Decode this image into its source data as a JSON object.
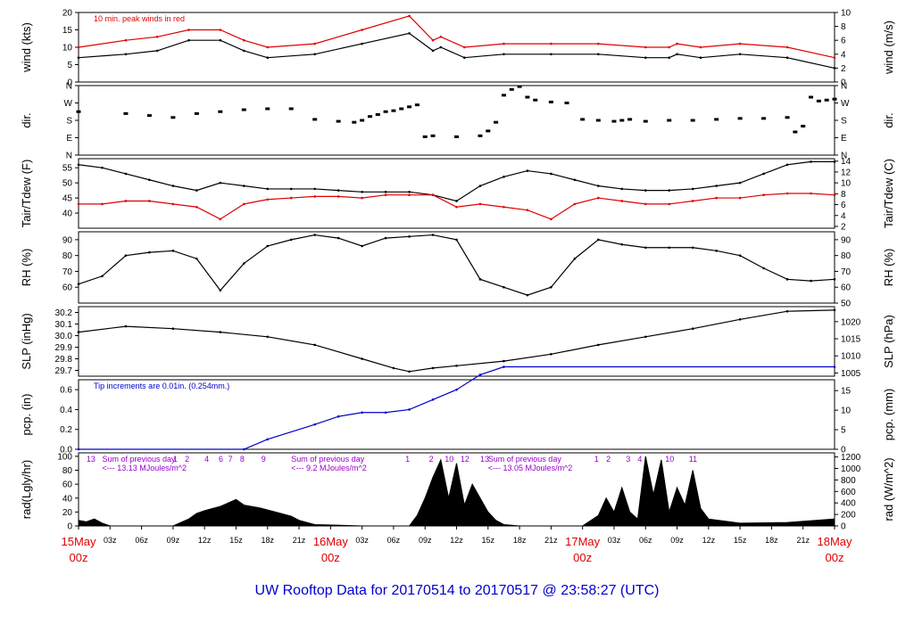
{
  "title": "UW Rooftop Data for 20170514  to  20170517 @ 23:58:27  (UTC)",
  "colors": {
    "primary": "#000000",
    "peak": "#e00000",
    "dewpoint": "#e00000",
    "precip": "#0000cc",
    "annotation": "#9900cc",
    "title": "#0000cc",
    "date": "#e00000"
  },
  "chart_data": [
    {
      "type": "line",
      "id": "wind",
      "ylabel_left": "wind (kts)",
      "ylabel_right": "wind (m/s)",
      "ylim": [
        0,
        20
      ],
      "ticks_left": [
        "0",
        "5",
        "10",
        "15",
        "20"
      ],
      "ylim_right": [
        0,
        10
      ],
      "ticks_right": [
        "0",
        "2",
        "4",
        "6",
        "8",
        "10"
      ],
      "annotation": "10 min. peak winds in red",
      "series": [
        {
          "name": "wind",
          "color": "#000000",
          "x": [
            0,
            6,
            10,
            14,
            18,
            21,
            24,
            30,
            36,
            42,
            45,
            46,
            49,
            54,
            60,
            66,
            72,
            75,
            76,
            79,
            84,
            90,
            96
          ],
          "values": [
            7,
            8,
            9,
            12,
            12,
            9,
            7,
            8,
            11,
            14,
            9,
            10,
            7,
            8,
            8,
            8,
            7,
            7,
            8,
            7,
            8,
            7,
            4
          ]
        },
        {
          "name": "10 min. peak",
          "color": "#e00000",
          "x": [
            0,
            6,
            10,
            14,
            18,
            21,
            24,
            30,
            36,
            42,
            45,
            46,
            49,
            54,
            60,
            66,
            72,
            75,
            76,
            79,
            84,
            90,
            96
          ],
          "values": [
            10,
            12,
            13,
            15,
            15,
            12,
            10,
            11,
            15,
            19,
            12,
            13,
            10,
            11,
            11,
            11,
            10,
            10,
            11,
            10,
            11,
            10,
            7
          ]
        }
      ]
    },
    {
      "type": "scatter",
      "id": "dir",
      "ylabel_left": "dir.",
      "ylabel_right": "dir.",
      "ylim": [
        0,
        360
      ],
      "ticks_left": [
        "N",
        "E",
        "S",
        "W",
        "N"
      ],
      "ticks_right": [
        "N",
        "E",
        "S",
        "W",
        "N"
      ],
      "series": [
        {
          "name": "dir",
          "color": "#000000",
          "x": [
            0,
            6,
            9,
            12,
            15,
            18,
            21,
            24,
            27,
            30,
            33,
            35,
            36,
            37,
            38,
            39,
            40,
            41,
            42,
            43,
            44,
            45,
            48,
            51,
            52,
            53,
            54,
            55,
            56,
            57,
            58,
            60,
            62,
            64,
            66,
            68,
            69,
            70,
            72,
            75,
            78,
            81,
            84,
            87,
            90,
            91,
            92,
            93,
            94,
            95,
            96
          ],
          "values": [
            225,
            215,
            205,
            195,
            215,
            225,
            235,
            240,
            240,
            185,
            175,
            170,
            180,
            200,
            210,
            225,
            230,
            240,
            250,
            260,
            95,
            100,
            95,
            100,
            125,
            170,
            310,
            340,
            355,
            300,
            285,
            275,
            270,
            185,
            180,
            175,
            180,
            185,
            175,
            180,
            180,
            185,
            190,
            190,
            195,
            120,
            150,
            300,
            280,
            285,
            290
          ]
        }
      ]
    },
    {
      "type": "line",
      "id": "temp",
      "ylabel_left": "Tair/Tdew (F)",
      "ylabel_right": "Tair/Tdew (C)",
      "ylim": [
        35,
        58
      ],
      "ticks_left": [
        "40",
        "45",
        "50",
        "55"
      ],
      "ticks_right": [
        "2",
        "4",
        "6",
        "8",
        "10",
        "12",
        "14"
      ],
      "series": [
        {
          "name": "Tair",
          "color": "#000000",
          "x": [
            0,
            3,
            6,
            9,
            12,
            15,
            18,
            21,
            24,
            27,
            30,
            33,
            36,
            39,
            42,
            45,
            48,
            51,
            54,
            57,
            60,
            63,
            66,
            69,
            72,
            75,
            78,
            81,
            84,
            87,
            90,
            93,
            96
          ],
          "values": [
            56,
            55,
            53,
            51,
            49,
            47.5,
            50,
            49,
            48,
            48,
            48,
            47.5,
            47,
            47,
            47,
            46,
            44,
            49,
            52,
            54,
            53,
            51,
            49,
            48,
            47.5,
            47.5,
            48,
            49,
            50,
            53,
            56,
            57,
            57
          ]
        },
        {
          "name": "Tdew",
          "color": "#e00000",
          "x": [
            0,
            3,
            6,
            9,
            12,
            15,
            18,
            21,
            24,
            27,
            30,
            33,
            36,
            39,
            42,
            45,
            48,
            51,
            54,
            57,
            60,
            63,
            66,
            69,
            72,
            75,
            78,
            81,
            84,
            87,
            90,
            93,
            96
          ],
          "values": [
            43,
            43,
            44,
            44,
            43,
            42,
            38,
            43,
            44.5,
            45,
            45.5,
            45.5,
            45,
            46,
            46,
            46,
            42,
            43,
            42,
            41,
            38,
            43,
            45,
            44,
            43,
            43,
            44,
            45,
            45,
            46,
            46.5,
            46.5,
            46
          ]
        }
      ]
    },
    {
      "type": "line",
      "id": "rh",
      "ylabel_left": "RH (%)",
      "ylabel_right": "RH (%)",
      "ylim": [
        50,
        95
      ],
      "ticks_left": [
        "60",
        "70",
        "80",
        "90"
      ],
      "ticks_right": [
        "50",
        "60",
        "70",
        "80",
        "90"
      ],
      "series": [
        {
          "name": "RH",
          "color": "#000000",
          "x": [
            0,
            3,
            6,
            9,
            12,
            15,
            18,
            21,
            24,
            27,
            30,
            33,
            36,
            39,
            42,
            45,
            48,
            51,
            54,
            57,
            60,
            63,
            66,
            69,
            72,
            75,
            78,
            81,
            84,
            87,
            90,
            93,
            96
          ],
          "values": [
            62,
            67,
            80,
            82,
            83,
            78,
            58,
            75,
            86,
            90,
            93,
            91,
            86,
            91,
            92,
            93,
            90,
            65,
            60,
            55,
            60,
            78,
            90,
            87,
            85,
            85,
            85,
            83,
            80,
            72,
            65,
            64,
            65
          ]
        }
      ]
    },
    {
      "type": "line",
      "id": "slp",
      "ylabel_left": "SLP (inHg)",
      "ylabel_right": "SLP (hPa)",
      "ylim": [
        29.65,
        30.25
      ],
      "ticks_left": [
        "29.7",
        "29.8",
        "29.9",
        "30.0",
        "30.1",
        "30.2"
      ],
      "ticks_right": [
        "1005",
        "1010",
        "1015",
        "1020"
      ],
      "series": [
        {
          "name": "SLP",
          "color": "#000000",
          "x": [
            0,
            6,
            12,
            18,
            24,
            30,
            36,
            40,
            42,
            45,
            48,
            54,
            60,
            66,
            72,
            78,
            84,
            90,
            96
          ],
          "values": [
            30.03,
            30.08,
            30.06,
            30.03,
            29.99,
            29.92,
            29.8,
            29.72,
            29.69,
            29.72,
            29.74,
            29.78,
            29.84,
            29.92,
            29.99,
            30.06,
            30.14,
            30.21,
            30.22
          ]
        }
      ]
    },
    {
      "type": "line",
      "id": "pcp",
      "ylabel_left": "pcp. (in)",
      "ylabel_right": "pcp. (mm)",
      "ylim": [
        0,
        0.7
      ],
      "ticks_left": [
        "0.0",
        "0.2",
        "0.4",
        "0.6"
      ],
      "ticks_right": [
        "0",
        "5",
        "10",
        "15"
      ],
      "annotation": "Tip increments are 0.01in. (0.254mm.)",
      "series": [
        {
          "name": "precip",
          "color": "#0000cc",
          "x": [
            0,
            21,
            24,
            30,
            33,
            36,
            39,
            42,
            45,
            48,
            51,
            54,
            96
          ],
          "values": [
            0,
            0,
            0.1,
            0.25,
            0.33,
            0.37,
            0.37,
            0.4,
            0.5,
            0.6,
            0.75,
            0.83,
            0.83
          ]
        }
      ]
    },
    {
      "type": "area",
      "id": "rad",
      "ylabel_left": "rad(Lgly/hr)",
      "ylabel_right": "rad (W/m^2)",
      "ylim": [
        0,
        105
      ],
      "ticks_left": [
        "0",
        "20",
        "40",
        "60",
        "80",
        "100"
      ],
      "ticks_right": [
        "0",
        "200",
        "400",
        "600",
        "800",
        "1000",
        "1200"
      ],
      "annotations": [
        {
          "x": 1,
          "text": "13"
        },
        {
          "x": 3,
          "text": "Sum of previous day"
        },
        {
          "x": 3,
          "text": "<--- 13.13 MJoules/m^2"
        },
        {
          "x": 12,
          "text": "1"
        },
        {
          "x": 13.5,
          "text": "2"
        },
        {
          "x": 16,
          "text": "4"
        },
        {
          "x": 17.8,
          "text": "6"
        },
        {
          "x": 19,
          "text": "7"
        },
        {
          "x": 20.5,
          "text": "8"
        },
        {
          "x": 23.2,
          "text": "9"
        },
        {
          "x": 27,
          "text": "Sum of previous day"
        },
        {
          "x": 27,
          "text": "<--- 9.2 MJoules/m^2"
        },
        {
          "x": 41.5,
          "text": "1"
        },
        {
          "x": 44.5,
          "text": "2"
        },
        {
          "x": 46.5,
          "text": "10"
        },
        {
          "x": 48.5,
          "text": "12"
        },
        {
          "x": 51,
          "text": "13"
        },
        {
          "x": 52,
          "text": "Sum of previous day"
        },
        {
          "x": 52,
          "text": "<--- 13.05 MJoules/m^2"
        },
        {
          "x": 65.5,
          "text": "1"
        },
        {
          "x": 67,
          "text": "2"
        },
        {
          "x": 69.5,
          "text": "3"
        },
        {
          "x": 71,
          "text": "4"
        },
        {
          "x": 74.5,
          "text": "10"
        },
        {
          "x": 77.5,
          "text": "11"
        }
      ],
      "series": [
        {
          "name": "rad",
          "color": "#000000",
          "x": [
            0,
            1,
            2,
            3,
            4,
            6,
            8,
            10,
            12,
            14,
            15,
            16,
            18,
            20,
            21,
            23,
            25,
            27,
            28,
            30,
            36,
            38,
            40,
            42,
            43,
            44,
            45,
            46,
            47,
            48,
            49,
            50,
            52,
            53,
            54,
            56,
            60,
            62,
            64,
            66,
            67,
            68,
            69,
            70,
            71,
            72,
            73,
            74,
            75,
            76,
            77,
            78,
            79,
            80,
            84,
            90,
            96
          ],
          "values": [
            8,
            6,
            10,
            4,
            0,
            0,
            0,
            0,
            0,
            10,
            18,
            22,
            28,
            38,
            30,
            26,
            20,
            14,
            8,
            2,
            0,
            0,
            0,
            0,
            15,
            40,
            70,
            95,
            40,
            90,
            30,
            60,
            20,
            8,
            2,
            0,
            0,
            0,
            0,
            15,
            40,
            20,
            55,
            20,
            10,
            100,
            45,
            95,
            20,
            55,
            30,
            80,
            25,
            10,
            4,
            5,
            10
          ]
        }
      ]
    }
  ],
  "xaxis": {
    "ticks": [
      "00z",
      "03z",
      "06z",
      "09z",
      "12z",
      "15z",
      "18z",
      "21z",
      "00z",
      "03z",
      "06z",
      "09z",
      "12z",
      "15z",
      "18z",
      "21z",
      "00z",
      "03z",
      "06z",
      "09z",
      "12z",
      "15z",
      "18z",
      "21z",
      "00z"
    ],
    "dates": [
      {
        "label": "15May",
        "sub": "00z"
      },
      {
        "label": "16May",
        "sub": "00z"
      },
      {
        "label": "17May",
        "sub": "00z"
      },
      {
        "label": "18May",
        "sub": "00z"
      }
    ]
  }
}
